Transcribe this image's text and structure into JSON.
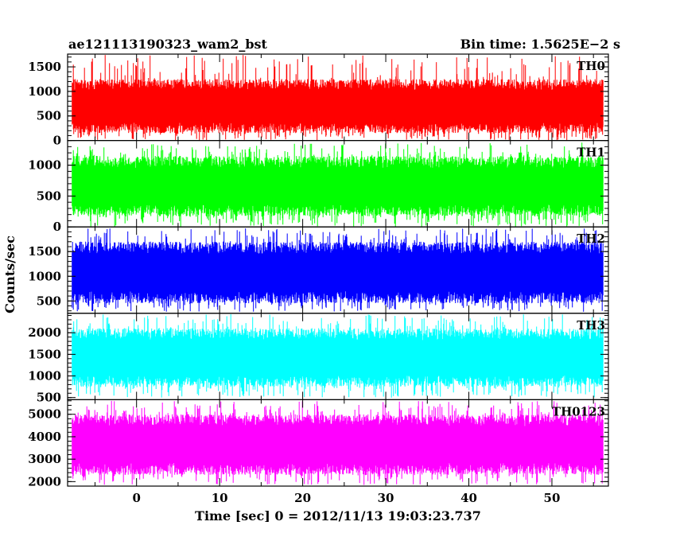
{
  "header": {
    "title": "ae121113190323_wam2_bst",
    "bin_time": "Bin time: 1.5625E−2 s"
  },
  "chart_data": {
    "type": "line",
    "title": "ae121113190323_wam2_bst",
    "xlabel": "Time [sec] 0 = 2012/11/13 19:03:23.737",
    "ylabel": "Counts/sec",
    "xlim": [
      -8.3,
      56.8
    ],
    "x_range_data": [
      -7.75,
      56.2
    ],
    "bin_time_s": 0.015625,
    "x_ticks": [
      0,
      10,
      20,
      30,
      40,
      50
    ],
    "grid": false,
    "panels": [
      {
        "name": "TH0",
        "color": "#ff0000",
        "ylim": [
          0,
          1760
        ],
        "y_ticks": [
          0,
          500,
          1000,
          1500
        ],
        "typical_min": 150,
        "typical_max": 1250,
        "spike_min": 0,
        "spike_max": 1750
      },
      {
        "name": "TH1",
        "color": "#00ff00",
        "ylim": [
          0,
          1400
        ],
        "y_ticks": [
          0,
          500,
          1000
        ],
        "typical_min": 170,
        "typical_max": 1150,
        "spike_min": 0,
        "spike_max": 1370
      },
      {
        "name": "TH2",
        "color": "#0000ff",
        "ylim": [
          250,
          2000
        ],
        "y_ticks": [
          500,
          1000,
          1500
        ],
        "typical_min": 450,
        "typical_max": 1700,
        "spike_min": 280,
        "spike_max": 1970
      },
      {
        "name": "TH3",
        "color": "#00ffff",
        "ylim": [
          450,
          2450
        ],
        "y_ticks": [
          500,
          1000,
          1500,
          2000
        ],
        "typical_min": 750,
        "typical_max": 2100,
        "spike_min": 500,
        "spike_max": 2430
      },
      {
        "name": "TH0123",
        "color": "#ff00ff",
        "ylim": [
          1800,
          5650
        ],
        "y_ticks": [
          2000,
          3000,
          4000,
          5000
        ],
        "typical_min": 2300,
        "typical_max": 5000,
        "spike_min": 1850,
        "spike_max": 5600
      }
    ]
  }
}
